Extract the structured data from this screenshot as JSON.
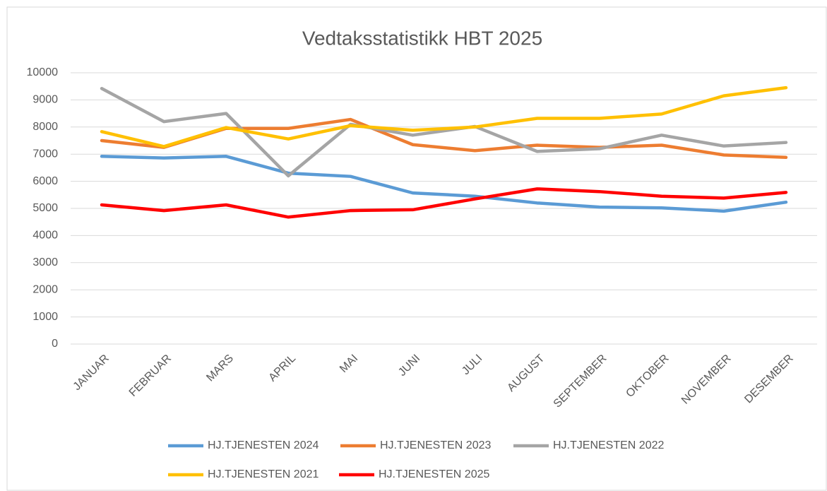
{
  "chart_data": {
    "type": "line",
    "title": "Vedtaksstatistikk HBT 2025",
    "categories": [
      "JANUAR",
      "FEBRUAR",
      "MARS",
      "APRIL",
      "MAI",
      "JUNI",
      "JULI",
      "AUGUST",
      "SEPTEMBER",
      "OKTOBER",
      "NOVEMBER",
      "DESEMBER"
    ],
    "series": [
      {
        "name": "HJ.TJENESTEN 2024",
        "color": "#5b9bd5",
        "values": [
          6920,
          6860,
          6920,
          6300,
          6180,
          5570,
          5450,
          5200,
          5050,
          5020,
          4900,
          5230
        ]
      },
      {
        "name": "HJ.TJENESTEN 2023",
        "color": "#ed7d31",
        "values": [
          7500,
          7250,
          7950,
          7950,
          8280,
          7350,
          7130,
          7330,
          7250,
          7330,
          6970,
          6880
        ]
      },
      {
        "name": "HJ.TJENESTEN 2022",
        "color": "#a5a5a5",
        "values": [
          9420,
          8200,
          8500,
          6200,
          8100,
          7700,
          8020,
          7100,
          7200,
          7700,
          7300,
          7430
        ]
      },
      {
        "name": "HJ.TJENESTEN 2021",
        "color": "#ffc000",
        "values": [
          7830,
          7280,
          7980,
          7560,
          8050,
          7880,
          8000,
          8320,
          8320,
          8480,
          9150,
          9450
        ]
      },
      {
        "name": "HJ.TJENESTEN 2025",
        "color": "#ff0000",
        "values": [
          5130,
          4920,
          5130,
          4680,
          4920,
          4950,
          5350,
          5720,
          5620,
          5450,
          5380,
          5590
        ]
      }
    ],
    "ylim": [
      0,
      10000
    ],
    "yticks": [
      0,
      1000,
      2000,
      3000,
      4000,
      5000,
      6000,
      7000,
      8000,
      9000,
      10000
    ],
    "grid": true
  }
}
